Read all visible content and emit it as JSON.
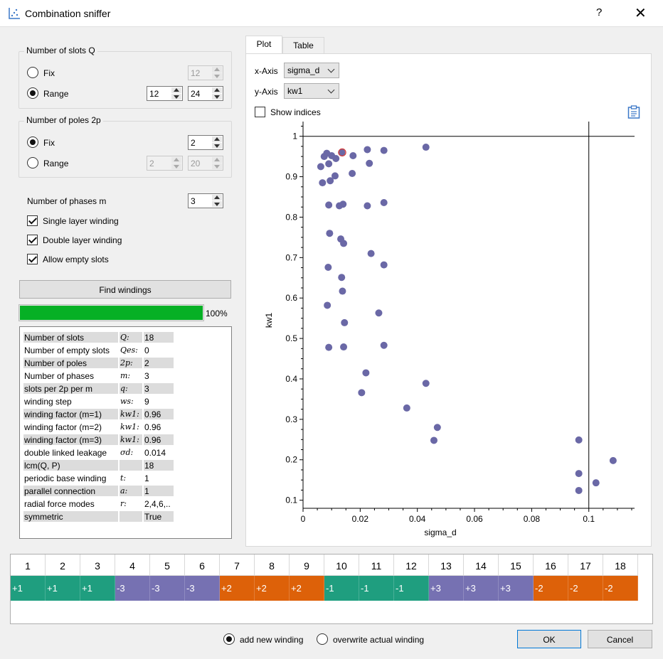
{
  "window": {
    "title": "Combination sniffer",
    "help": "?",
    "close": "✕"
  },
  "slots": {
    "title": "Number of slots Q",
    "fix_label": "Fix",
    "fix_value": "12",
    "range_label": "Range",
    "range_from": "12",
    "range_to": "24"
  },
  "poles": {
    "title": "Number of poles 2p",
    "fix_label": "Fix",
    "fix_value": "2",
    "range_label": "Range",
    "range_from": "2",
    "range_to": "20"
  },
  "phases": {
    "label": "Number of phases m",
    "value": "3"
  },
  "options": {
    "single_layer": "Single layer winding",
    "double_layer": "Double layer winding",
    "allow_empty": "Allow empty slots"
  },
  "find_button": "Find windings",
  "progress": {
    "text": "100%",
    "fraction": 1.0,
    "color": "#06b025"
  },
  "info": [
    {
      "label": "Number of slots",
      "sym": "Q:",
      "val": "18"
    },
    {
      "label": "Number of empty slots",
      "sym": "Qes:",
      "val": "0"
    },
    {
      "label": "Number of poles",
      "sym": "2p:",
      "val": "2"
    },
    {
      "label": "Number of phases",
      "sym": "m:",
      "val": "3"
    },
    {
      "label": "slots per 2p per m",
      "sym": "q:",
      "val": "3"
    },
    {
      "label": "winding step",
      "sym": "ws:",
      "val": "9"
    },
    {
      "label": "winding factor (m=1)",
      "sym": "kw1:",
      "val": "0.96"
    },
    {
      "label": "winding factor (m=2)",
      "sym": "kw1:",
      "val": "0.96"
    },
    {
      "label": "winding factor (m=3)",
      "sym": "kw1:",
      "val": "0.96"
    },
    {
      "label": "double linked leakage",
      "sym": "σd:",
      "val": "0.014"
    },
    {
      "label": "lcm(Q, P)",
      "sym": "",
      "val": "18"
    },
    {
      "label": "periodic base winding",
      "sym": "t:",
      "val": "1"
    },
    {
      "label": "parallel connection",
      "sym": "a:",
      "val": "1"
    },
    {
      "label": "radial force modes",
      "sym": "r:",
      "val": "2,4,6,.."
    },
    {
      "label": "symmetric",
      "sym": "",
      "val": "True"
    }
  ],
  "tabs": {
    "plot": "Plot",
    "table": "Table"
  },
  "axes_select": {
    "x_label": "x-Axis",
    "x_value": "sigma_d",
    "y_label": "y-Axis",
    "y_value": "kw1"
  },
  "show_indices": "Show indices",
  "chart_data": {
    "type": "scatter",
    "xlabel": "sigma_d",
    "ylabel": "kw1",
    "xlim": [
      0,
      0.116
    ],
    "ylim": [
      0.08,
      1.01
    ],
    "xticks": [
      "0",
      "0.02",
      "0.04",
      "0.06",
      "0.08",
      "0.1"
    ],
    "yticks": [
      "0.1",
      "0.2",
      "0.3",
      "0.4",
      "0.5",
      "0.6",
      "0.7",
      "0.8",
      "0.9",
      "1"
    ],
    "grid_lines": {
      "x": 0.1,
      "y": 1.0
    },
    "color": "#6a68a6",
    "highlight_color": "#d23c3c",
    "points": [
      [
        0.0135,
        0.96
      ],
      [
        0.0083,
        0.958
      ],
      [
        0.0074,
        0.95
      ],
      [
        0.01,
        0.952
      ],
      [
        0.0115,
        0.945
      ],
      [
        0.0175,
        0.952
      ],
      [
        0.0225,
        0.967
      ],
      [
        0.0283,
        0.965
      ],
      [
        0.043,
        0.973
      ],
      [
        0.0062,
        0.925
      ],
      [
        0.009,
        0.932
      ],
      [
        0.0232,
        0.933
      ],
      [
        0.0112,
        0.902
      ],
      [
        0.0172,
        0.908
      ],
      [
        0.0068,
        0.885
      ],
      [
        0.0095,
        0.89
      ],
      [
        0.009,
        0.83
      ],
      [
        0.0127,
        0.828
      ],
      [
        0.014,
        0.832
      ],
      [
        0.0225,
        0.828
      ],
      [
        0.0283,
        0.836
      ],
      [
        0.0093,
        0.76
      ],
      [
        0.0132,
        0.746
      ],
      [
        0.0142,
        0.735
      ],
      [
        0.0238,
        0.71
      ],
      [
        0.0088,
        0.676
      ],
      [
        0.0283,
        0.682
      ],
      [
        0.0135,
        0.651
      ],
      [
        0.0138,
        0.617
      ],
      [
        0.0085,
        0.582
      ],
      [
        0.0265,
        0.563
      ],
      [
        0.0145,
        0.539
      ],
      [
        0.009,
        0.478
      ],
      [
        0.0142,
        0.479
      ],
      [
        0.0283,
        0.483
      ],
      [
        0.022,
        0.415
      ],
      [
        0.0205,
        0.366
      ],
      [
        0.043,
        0.389
      ],
      [
        0.0363,
        0.328
      ],
      [
        0.047,
        0.28
      ],
      [
        0.0458,
        0.248
      ],
      [
        0.0965,
        0.249
      ],
      [
        0.1085,
        0.198
      ],
      [
        0.0965,
        0.166
      ],
      [
        0.1025,
        0.143
      ],
      [
        0.0965,
        0.124
      ]
    ],
    "highlight": [
      0.0137,
      0.96
    ]
  },
  "sequence": {
    "numbers": [
      "1",
      "2",
      "3",
      "4",
      "5",
      "6",
      "7",
      "8",
      "9",
      "10",
      "11",
      "12",
      "13",
      "14",
      "15",
      "16",
      "17",
      "18"
    ],
    "cells": [
      "+1",
      "+1",
      "+1",
      "-3",
      "-3",
      "-3",
      "+2",
      "+2",
      "+2",
      "-1",
      "-1",
      "-1",
      "+3",
      "+3",
      "+3",
      "-2",
      "-2",
      "-2"
    ],
    "colors": {
      "1": "#1f9e7f",
      "2": "#dd6109",
      "3": "#7671b2"
    }
  },
  "footer": {
    "add_new": "add new winding",
    "overwrite": "overwrite actual winding",
    "ok": "OK",
    "cancel": "Cancel"
  }
}
